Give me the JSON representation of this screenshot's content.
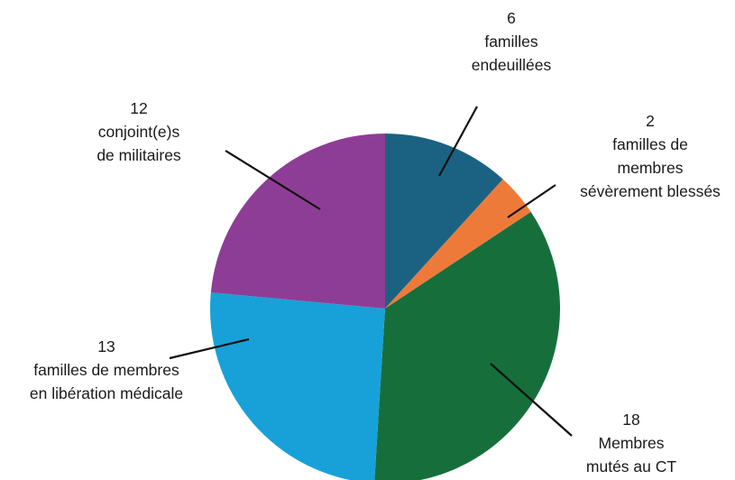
{
  "chart_data": {
    "type": "pie",
    "slices": [
      {
        "value": 6,
        "label_lines": [
          "6",
          "familles",
          "endeuillées"
        ],
        "color": "#1b6282"
      },
      {
        "value": 2,
        "label_lines": [
          "2",
          "familles de",
          "membres",
          "sévèrement blessés"
        ],
        "color": "#ee7a3a"
      },
      {
        "value": 18,
        "label_lines": [
          "18",
          "Membres",
          "mutés au CT"
        ],
        "color": "#166f3b"
      },
      {
        "value": 13,
        "label_lines": [
          "13",
          "familles de membres",
          "en libération médicale"
        ],
        "color": "#17a1d8"
      },
      {
        "value": 12,
        "label_lines": [
          "12",
          "conjoint(e)s",
          "de militaires"
        ],
        "color": "#8e3d96"
      }
    ],
    "start": "top",
    "direction": "clockwise",
    "legend": "none"
  }
}
